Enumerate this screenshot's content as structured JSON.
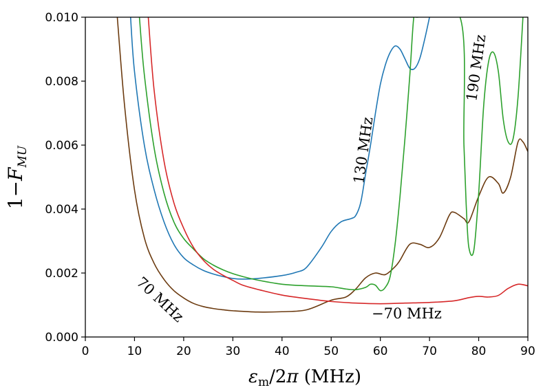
{
  "chart_data": {
    "type": "line",
    "xlabel": "εm/2π (MHz)",
    "ylabel": "1−F_MU",
    "xlim": [
      0,
      90
    ],
    "ylim": [
      0,
      0.01
    ],
    "x_ticks": [
      "0",
      "10",
      "20",
      "30",
      "40",
      "50",
      "60",
      "70",
      "80",
      "90"
    ],
    "y_ticks": [
      "0.000",
      "0.002",
      "0.004",
      "0.006",
      "0.008",
      "0.010"
    ],
    "grid": false,
    "series": [
      {
        "name": "70 MHz",
        "color": "#6b3a0f",
        "x": [
          6.5,
          8,
          10,
          12,
          14,
          16,
          18,
          20,
          22,
          24,
          26,
          28,
          30,
          35,
          40,
          45,
          50,
          53,
          55,
          57,
          59,
          61,
          63,
          64,
          66,
          68,
          70,
          72,
          74,
          75,
          77,
          78,
          80,
          82,
          84,
          85,
          86.5,
          88,
          89,
          90
        ],
        "values": [
          0.01,
          0.0072,
          0.0046,
          0.0031,
          0.0023,
          0.0018,
          0.00145,
          0.00122,
          0.00105,
          0.00095,
          0.00089,
          0.00085,
          0.00082,
          0.00078,
          0.00079,
          0.00085,
          0.00115,
          0.00125,
          0.0015,
          0.00185,
          0.002,
          0.00195,
          0.0022,
          0.0024,
          0.0029,
          0.0029,
          0.0028,
          0.0031,
          0.0038,
          0.0039,
          0.0037,
          0.0036,
          0.0044,
          0.005,
          0.0048,
          0.0045,
          0.005,
          0.0061,
          0.0061,
          0.0058
        ]
      },
      {
        "name": "130 MHz",
        "color": "#1f77b4",
        "x": [
          9.2,
          10,
          12,
          14,
          16,
          18,
          20,
          22,
          24,
          26,
          28,
          30,
          32,
          35,
          40,
          43,
          45,
          48,
          50,
          52,
          54,
          55,
          56,
          57,
          58,
          59,
          60,
          61,
          62,
          63,
          64,
          65,
          66,
          67,
          68,
          69,
          70
        ],
        "values": [
          0.01,
          0.0083,
          0.006,
          0.0046,
          0.0036,
          0.0029,
          0.00248,
          0.00225,
          0.00208,
          0.00197,
          0.00189,
          0.00183,
          0.00181,
          0.00183,
          0.00192,
          0.00203,
          0.00218,
          0.0028,
          0.0033,
          0.0036,
          0.0037,
          0.0038,
          0.0042,
          0.0051,
          0.006,
          0.007,
          0.0079,
          0.0085,
          0.0089,
          0.0091,
          0.009,
          0.0087,
          0.0084,
          0.0084,
          0.0087,
          0.0093,
          0.01
        ]
      },
      {
        "name": "190 MHz",
        "color": "#2ca02c",
        "x": [
          11,
          12,
          14,
          16,
          18,
          20,
          22,
          24,
          26,
          28,
          30,
          32,
          35,
          40,
          45,
          50,
          53,
          55,
          57,
          58,
          59,
          60,
          61,
          62,
          63,
          64,
          65,
          66,
          66.8,
          67.5,
          76.2,
          77,
          77.5,
          78,
          79,
          80,
          81,
          82,
          83,
          84,
          85,
          86,
          87,
          88,
          89
        ],
        "values": [
          0.01,
          0.0082,
          0.0059,
          0.0045,
          0.0036,
          0.00308,
          0.00275,
          0.00245,
          0.00225,
          0.0021,
          0.00198,
          0.00189,
          0.00178,
          0.00165,
          0.0016,
          0.00157,
          0.0015,
          0.00148,
          0.00155,
          0.00165,
          0.00162,
          0.00145,
          0.00155,
          0.0019,
          0.0029,
          0.0044,
          0.0062,
          0.0082,
          0.01,
          0.01,
          0.01,
          0.006,
          0.004,
          0.0028,
          0.0027,
          0.0045,
          0.0072,
          0.0086,
          0.0089,
          0.0083,
          0.0068,
          0.0061,
          0.0062,
          0.0075,
          0.01
        ]
      },
      {
        "name": "−70 MHz",
        "color": "#d62728",
        "x": [
          12.8,
          14,
          16,
          18,
          20,
          22,
          24,
          26,
          28,
          30,
          32,
          35,
          40,
          45,
          50,
          55,
          60,
          65,
          70,
          75,
          78,
          80,
          82,
          84,
          86,
          88,
          90
        ],
        "values": [
          0.01,
          0.0077,
          0.0055,
          0.0042,
          0.0034,
          0.0028,
          0.0024,
          0.00212,
          0.00193,
          0.00177,
          0.00162,
          0.00149,
          0.00131,
          0.0012,
          0.00111,
          0.00106,
          0.00104,
          0.00106,
          0.00108,
          0.00113,
          0.00123,
          0.00127,
          0.00125,
          0.0013,
          0.00152,
          0.00165,
          0.0016
        ]
      }
    ],
    "annotations": [
      {
        "text": "70 MHz",
        "series": "70 MHz"
      },
      {
        "text": "130 MHz",
        "series": "130 MHz"
      },
      {
        "text": "190 MHz",
        "series": "190 MHz"
      },
      {
        "text": "−70 MHz",
        "series": "−70 MHz"
      }
    ]
  }
}
